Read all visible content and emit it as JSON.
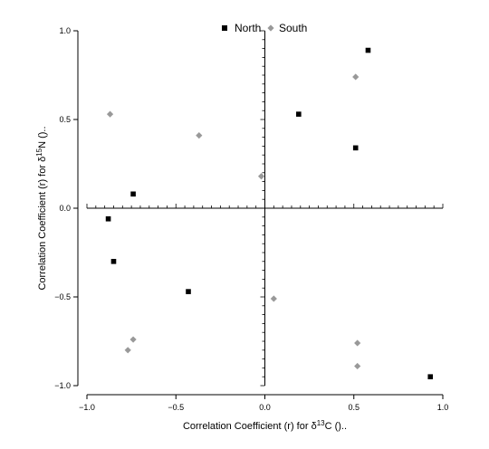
{
  "chart_data": {
    "type": "scatter",
    "title": "",
    "xlabel": {
      "pre": "Correlation Coefficient (r) for δ",
      "sup": "13",
      "post": "C ()..",
      "full": "Correlation Coefficient (r) for δ13C ().."
    },
    "ylabel": {
      "pre": "Correlation Coefficient (r) for δ",
      "sup": "15",
      "post": "N ()..",
      "full": "Correlation Coefficient (r) for δ15N ().."
    },
    "xlim": [
      -1.0,
      1.0
    ],
    "ylim": [
      -1.0,
      1.0
    ],
    "x_ticks": [
      -1.0,
      -0.5,
      0.0,
      0.5,
      1.0
    ],
    "y_ticks": [
      -1.0,
      -0.5,
      0.0,
      0.5,
      1.0
    ],
    "x_tick_labels": [
      "−1.0",
      "−0.5",
      "0.0",
      "0.5",
      "1.0"
    ],
    "y_tick_labels": [
      "−1.0",
      "−0.5",
      "0.0",
      "0.5",
      "1.0"
    ],
    "zero_axes": true,
    "grid": false,
    "legend_position": "top-center",
    "series": [
      {
        "name": "North",
        "marker": "square",
        "color": "#000000",
        "points": [
          {
            "x": 0.58,
            "y": 0.89
          },
          {
            "x": 0.19,
            "y": 0.53
          },
          {
            "x": 0.51,
            "y": 0.34
          },
          {
            "x": -0.74,
            "y": 0.08
          },
          {
            "x": -0.88,
            "y": -0.06
          },
          {
            "x": -0.85,
            "y": -0.3
          },
          {
            "x": -0.43,
            "y": -0.47
          },
          {
            "x": 0.93,
            "y": -0.95
          }
        ]
      },
      {
        "name": "South",
        "marker": "diamond",
        "color": "#999999",
        "points": [
          {
            "x": 0.51,
            "y": 0.74
          },
          {
            "x": -0.87,
            "y": 0.53
          },
          {
            "x": -0.37,
            "y": 0.41
          },
          {
            "x": -0.02,
            "y": 0.18
          },
          {
            "x": 0.05,
            "y": -0.51
          },
          {
            "x": -0.74,
            "y": -0.74
          },
          {
            "x": -0.77,
            "y": -0.8
          },
          {
            "x": 0.52,
            "y": -0.76
          },
          {
            "x": 0.52,
            "y": -0.89
          }
        ]
      }
    ]
  }
}
